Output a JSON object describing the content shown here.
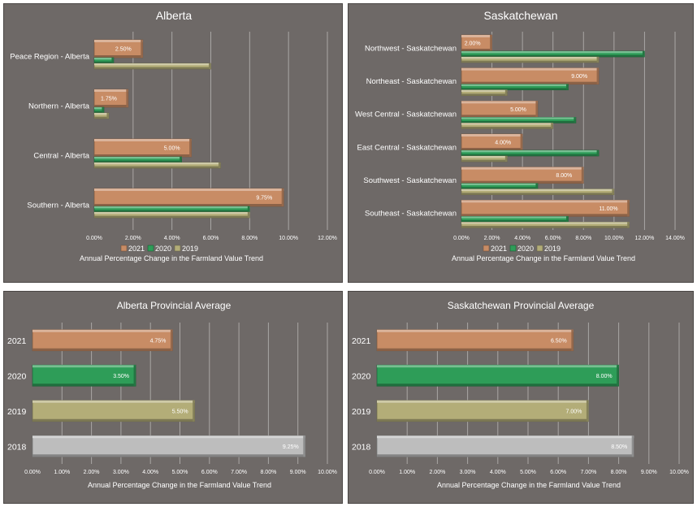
{
  "colors": {
    "2021": "#c88c65",
    "2020": "#2e9d58",
    "2019": "#b3ad78",
    "2018": "#bdbdbd",
    "panel_bg": "#6e6967"
  },
  "chart_data": [
    {
      "id": "alberta",
      "type": "bar",
      "orientation": "horizontal",
      "title": "Alberta",
      "categories": [
        "Peace Region - Alberta",
        "Northern - Alberta",
        "Central - Alberta",
        "Southern - Alberta"
      ],
      "series": [
        {
          "name": "2021",
          "values": [
            2.5,
            1.75,
            5.0,
            9.75
          ],
          "labels": [
            "2.50%",
            "1.75%",
            "5.00%",
            "9.75%"
          ]
        },
        {
          "name": "2020",
          "values": [
            1.0,
            0.5,
            4.5,
            8.0
          ]
        },
        {
          "name": "2019",
          "values": [
            6.0,
            0.75,
            6.5,
            8.0
          ]
        }
      ],
      "xticks": [
        "0.00%",
        "2.00%",
        "4.00%",
        "6.00%",
        "8.00%",
        "10.00%",
        "12.00%"
      ],
      "xlim": [
        0,
        12
      ],
      "xlabel": "Annual Percentage Change in the Farmland Value Trend",
      "legend": "bottom",
      "grid": true
    },
    {
      "id": "saskatchewan",
      "type": "bar",
      "orientation": "horizontal",
      "title": "Saskatchewan",
      "categories": [
        "Northwest - Saskatchewan",
        "Northeast - Saskatchewan",
        "West Central - Saskatchewan",
        "East Central - Saskatchewan",
        "Southwest - Saskatchewan",
        "Southeast - Saskatchewan"
      ],
      "series": [
        {
          "name": "2021",
          "values": [
            2.0,
            9.0,
            5.0,
            4.0,
            8.0,
            11.0
          ],
          "labels": [
            "2.00%",
            "9.00%",
            "5.00%",
            "4.00%",
            "8.00%",
            "11.00%"
          ]
        },
        {
          "name": "2020",
          "values": [
            12.0,
            7.0,
            7.5,
            9.0,
            5.0,
            7.0
          ]
        },
        {
          "name": "2019",
          "values": [
            9.0,
            3.0,
            6.0,
            3.0,
            10.0,
            11.0
          ]
        }
      ],
      "xticks": [
        "0.00%",
        "2.00%",
        "4.00%",
        "6.00%",
        "8.00%",
        "10.00%",
        "12.00%",
        "14.00%"
      ],
      "xlim": [
        0,
        14
      ],
      "xlabel": "Annual Percentage Change in the Farmland Value Trend",
      "legend": "bottom",
      "grid": true
    },
    {
      "id": "alberta-avg",
      "type": "bar",
      "orientation": "horizontal",
      "title": "Alberta Provincial Average",
      "categories": [
        "2021",
        "2020",
        "2019",
        "2018"
      ],
      "values": [
        4.75,
        3.5,
        5.5,
        9.25
      ],
      "labels": [
        "4.75%",
        "3.50%",
        "5.50%",
        "9.25%"
      ],
      "xticks": [
        "0.00%",
        "1.00%",
        "2.00%",
        "3.00%",
        "4.00%",
        "5.00%",
        "6.00%",
        "7.00%",
        "8.00%",
        "9.00%",
        "10.00%"
      ],
      "xlim": [
        0,
        10
      ],
      "xlabel": "Annual Percentage Change in the Farmland Value Trend",
      "grid": true
    },
    {
      "id": "saskatchewan-avg",
      "type": "bar",
      "orientation": "horizontal",
      "title": "Saskatchewan Provincial Average",
      "categories": [
        "2021",
        "2020",
        "2019",
        "2018"
      ],
      "values": [
        6.5,
        8.0,
        7.0,
        8.5
      ],
      "labels": [
        "6.50%",
        "8.00%",
        "7.00%",
        "8.50%"
      ],
      "xticks": [
        "0.00%",
        "1.00%",
        "2.00%",
        "3.00%",
        "4.00%",
        "5.00%",
        "6.00%",
        "7.00%",
        "8.00%",
        "9.00%",
        "10.00%"
      ],
      "xlim": [
        0,
        10
      ],
      "xlabel": "Annual Percentage Change in the Farmland Value Trend",
      "grid": true
    }
  ]
}
